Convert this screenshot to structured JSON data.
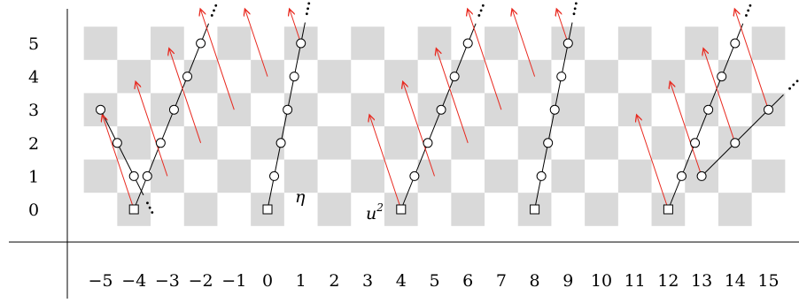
{
  "x_ticks": [
    "−5",
    "−4",
    "−3",
    "−2",
    "−1",
    "0",
    "1",
    "2",
    "3",
    "4",
    "5",
    "6",
    "7",
    "8",
    "9",
    "10",
    "11",
    "12",
    "13",
    "14",
    "15"
  ],
  "y_ticks": [
    "0",
    "1",
    "2",
    "3",
    "4",
    "5"
  ],
  "labels": {
    "eta": "η",
    "u2_base": "u",
    "u2_exp": "2"
  },
  "colors": {
    "checker": "#d9d9d9",
    "arrow": "#e8281e",
    "line": "#000000"
  },
  "lines": [
    {
      "from": [
        -4,
        0
      ],
      "to": [
        -2,
        5
      ],
      "start": "square",
      "extend_start": false,
      "extend_end": true
    },
    {
      "from": [
        -4,
        1
      ],
      "to": [
        -5,
        3
      ],
      "start": "circle",
      "extend_start": true,
      "extend_end": false
    },
    {
      "from": [
        0,
        0
      ],
      "to": [
        1,
        5
      ],
      "start": "square",
      "extend_start": false,
      "extend_end": true
    },
    {
      "from": [
        4,
        0
      ],
      "to": [
        6,
        5
      ],
      "start": "square",
      "extend_start": false,
      "extend_end": true
    },
    {
      "from": [
        8,
        0
      ],
      "to": [
        9,
        5
      ],
      "start": "square",
      "extend_start": false,
      "extend_end": true
    },
    {
      "from": [
        12,
        0
      ],
      "to": [
        14,
        5
      ],
      "start": "square",
      "extend_start": false,
      "extend_end": true
    },
    {
      "from": [
        13,
        1
      ],
      "to": [
        15,
        3
      ],
      "start": "circle",
      "extend_start": false,
      "extend_end": true
    }
  ],
  "arrows": [
    [
      [
        -4,
        0
      ],
      [
        -5,
        3
      ]
    ],
    [
      [
        -3,
        1
      ],
      [
        -4,
        4
      ]
    ],
    [
      [
        -2,
        2
      ],
      [
        -3,
        5
      ]
    ],
    [
      [
        -1,
        3
      ],
      [
        -2,
        6
      ]
    ],
    [
      [
        0,
        4
      ],
      [
        -1,
        7
      ]
    ],
    [
      [
        1,
        5
      ],
      [
        0,
        8
      ]
    ],
    [
      [
        4,
        0
      ],
      [
        3,
        3
      ]
    ],
    [
      [
        5,
        1
      ],
      [
        4,
        4
      ]
    ],
    [
      [
        6,
        2
      ],
      [
        5,
        5
      ]
    ],
    [
      [
        7,
        3
      ],
      [
        6,
        6
      ]
    ],
    [
      [
        8,
        4
      ],
      [
        7,
        7
      ]
    ],
    [
      [
        9,
        5
      ],
      [
        8,
        8
      ]
    ],
    [
      [
        12,
        0
      ],
      [
        11,
        3
      ]
    ],
    [
      [
        13,
        1
      ],
      [
        12,
        4
      ]
    ],
    [
      [
        14,
        2
      ],
      [
        13,
        5
      ]
    ],
    [
      [
        15,
        3
      ],
      [
        14,
        6
      ]
    ]
  ]
}
